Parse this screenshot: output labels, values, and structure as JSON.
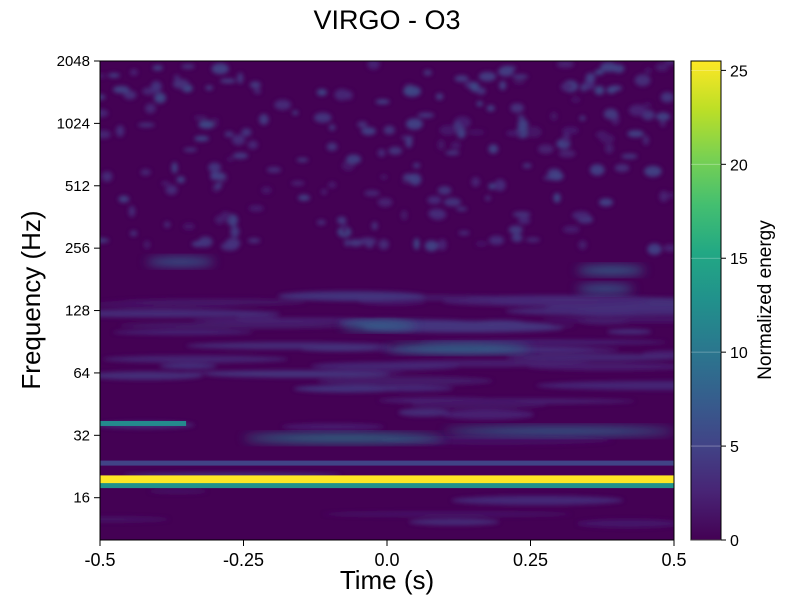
{
  "chart_data": {
    "type": "heatmap",
    "title": "VIRGO - O3",
    "xlabel": "Time (s)",
    "ylabel": "Frequency (Hz)",
    "xlim": [
      -0.5,
      0.5
    ],
    "ylim": [
      10,
      2048
    ],
    "yscale": "log2",
    "x_ticks": [
      {
        "value": -0.5,
        "label": "-0.5"
      },
      {
        "value": -0.25,
        "label": "-0.25"
      },
      {
        "value": 0.0,
        "label": "0.0"
      },
      {
        "value": 0.25,
        "label": "0.25"
      },
      {
        "value": 0.5,
        "label": "0.5"
      }
    ],
    "y_ticks": [
      {
        "value": 16,
        "label": "16"
      },
      {
        "value": 32,
        "label": "32"
      },
      {
        "value": 64,
        "label": "64"
      },
      {
        "value": 128,
        "label": "128"
      },
      {
        "value": 256,
        "label": "256"
      },
      {
        "value": 512,
        "label": "512"
      },
      {
        "value": 1024,
        "label": "1024"
      },
      {
        "value": 2048,
        "label": "2048"
      }
    ],
    "colorbar": {
      "label": "Normalized energy",
      "range": [
        0,
        25.5
      ],
      "colormap": "viridis",
      "ticks": [
        {
          "value": 0,
          "label": "0"
        },
        {
          "value": 5,
          "label": "5"
        },
        {
          "value": 10,
          "label": "10"
        },
        {
          "value": 15,
          "label": "15"
        },
        {
          "value": 20,
          "label": "20"
        },
        {
          "value": 25,
          "label": "25"
        }
      ]
    },
    "features": [
      {
        "kind": "horizontal_line",
        "frequency_hz": 19.5,
        "energy": 25.5,
        "t_start": -0.5,
        "t_end": 0.5
      },
      {
        "kind": "horizontal_line",
        "frequency_hz": 18.3,
        "energy": 13,
        "t_start": -0.5,
        "t_end": 0.5
      },
      {
        "kind": "horizontal_line",
        "frequency_hz": 23.5,
        "energy": 5,
        "t_start": -0.5,
        "t_end": 0.5
      },
      {
        "kind": "horizontal_line",
        "frequency_hz": 36.5,
        "energy": 12,
        "t_start": -0.5,
        "t_end": -0.35
      },
      {
        "kind": "blob",
        "frequency_hz": 31,
        "energy": 11,
        "t_start": -0.25,
        "t_end": 0.1
      },
      {
        "kind": "blob",
        "frequency_hz": 33.5,
        "energy": 9,
        "t_start": 0.1,
        "t_end": 0.5
      },
      {
        "kind": "blob",
        "frequency_hz": 84,
        "energy": 10,
        "t_start": 0.0,
        "t_end": 0.25
      },
      {
        "kind": "blob",
        "frequency_hz": 108,
        "energy": 9,
        "t_start": -0.08,
        "t_end": 0.05
      },
      {
        "kind": "blob",
        "frequency_hz": 220,
        "energy": 8,
        "t_start": -0.42,
        "t_end": -0.3
      },
      {
        "kind": "blob",
        "frequency_hz": 200,
        "energy": 9,
        "t_start": 0.33,
        "t_end": 0.45
      },
      {
        "kind": "blob",
        "frequency_hz": 163,
        "energy": 8,
        "t_start": 0.33,
        "t_end": 0.43
      }
    ],
    "background_energy": 1
  }
}
